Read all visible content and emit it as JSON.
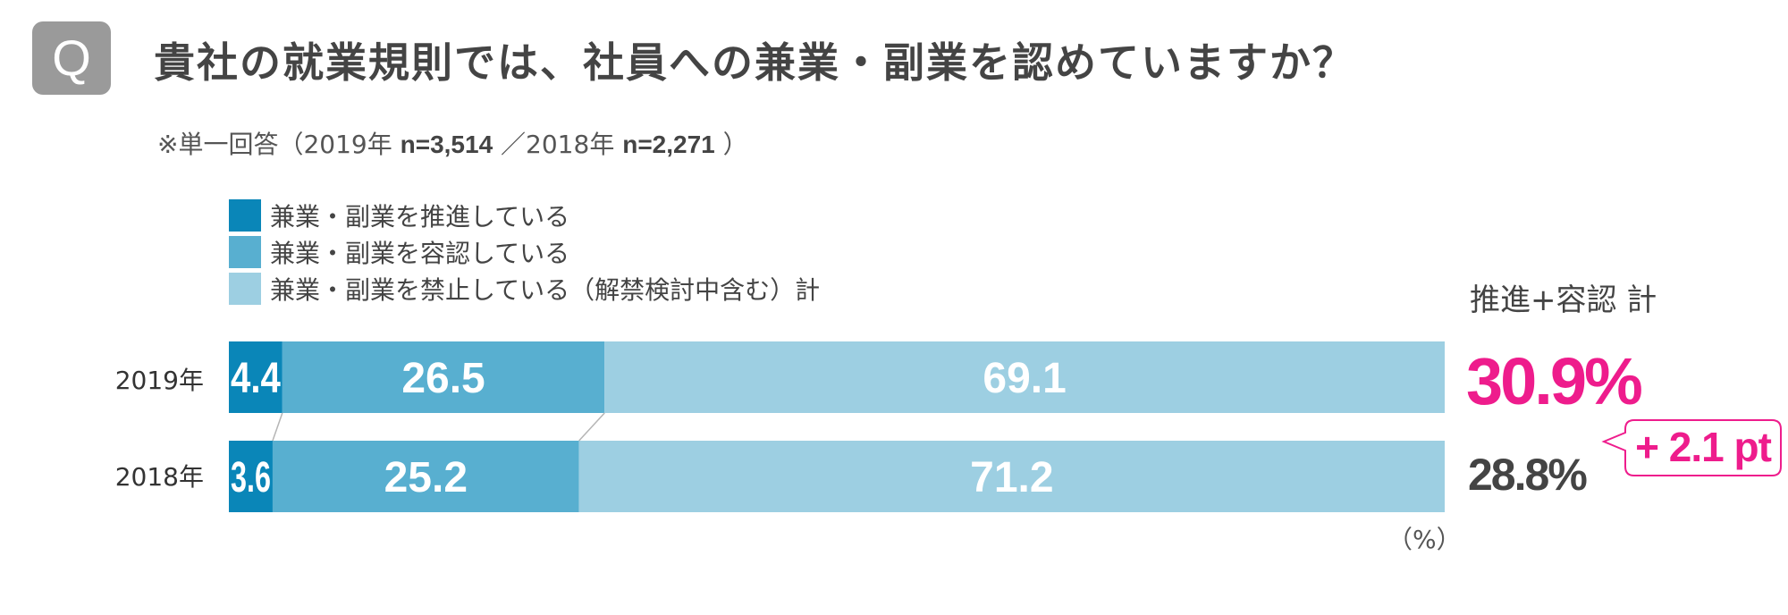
{
  "header": {
    "badge": "Q",
    "title": "貴社の就業規則では、社員への兼業・副業を認めていますか？",
    "subtitle_prefix": "※単一回答（2019年 ",
    "n_2019": "n=3,514",
    "subtitle_mid": " ／2018年 ",
    "n_2018": "n=2,271",
    "subtitle_suffix": " ）"
  },
  "legend": [
    {
      "label": "兼業・副業を推進している",
      "color": "#0a86b8"
    },
    {
      "label": "兼業・副業を容認している",
      "color": "#58afd0"
    },
    {
      "label": "兼業・副業を禁止している（解禁検討中含む）計",
      "color": "#9dcfe2"
    }
  ],
  "totals": {
    "header": "推進+容認 計",
    "value_2019": "30.9%",
    "value_2018": "28.8%",
    "diff": "+ 2.1 pt",
    "highlight_color": "#ee1c8c"
  },
  "unit": "（%）",
  "chart_data": {
    "type": "bar",
    "orientation": "horizontal",
    "stacked": true,
    "percent": true,
    "categories": [
      "2019年",
      "2018年"
    ],
    "series": [
      {
        "name": "兼業・副業を推進している",
        "values": [
          4.4,
          3.6
        ],
        "color": "#0a86b8"
      },
      {
        "name": "兼業・副業を容認している",
        "values": [
          26.5,
          25.2
        ],
        "color": "#58afd0"
      },
      {
        "name": "兼業・副業を禁止している（解禁検討中含む）計",
        "values": [
          69.1,
          71.2
        ],
        "color": "#9dcfe2"
      }
    ],
    "xlim": [
      0,
      100
    ]
  }
}
